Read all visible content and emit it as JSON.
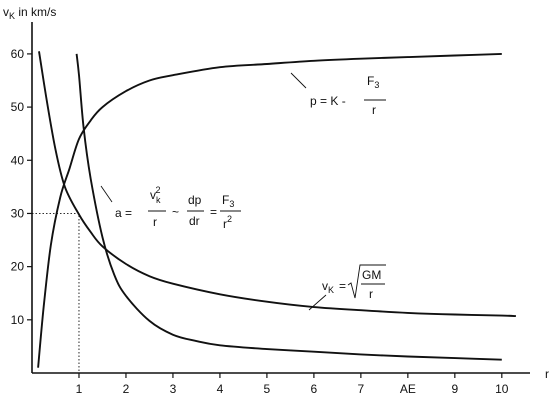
{
  "chart_data": {
    "type": "line",
    "ylabel": "v",
    "ylabel_sub": "K",
    "ylabel_suffix": " in km/s",
    "xlabel": "r",
    "xlim": [
      0,
      10.6
    ],
    "ylim": [
      0,
      66
    ],
    "x_ticks": [
      {
        "value": 1,
        "label": "1"
      },
      {
        "value": 2,
        "label": "2"
      },
      {
        "value": 3,
        "label": "3"
      },
      {
        "value": 4,
        "label": "4"
      },
      {
        "value": 5,
        "label": "5"
      },
      {
        "value": 6,
        "label": "6"
      },
      {
        "value": 7,
        "label": "7"
      },
      {
        "value": 8,
        "label": "AE"
      },
      {
        "value": 9,
        "label": "9"
      },
      {
        "value": 10,
        "label": "10"
      }
    ],
    "y_ticks": [
      {
        "value": 10,
        "label": "10"
      },
      {
        "value": 20,
        "label": "20"
      },
      {
        "value": 30,
        "label": "30"
      },
      {
        "value": 40,
        "label": "40"
      },
      {
        "value": 50,
        "label": "50"
      },
      {
        "value": 60,
        "label": "60"
      }
    ],
    "grid": false,
    "series": [
      {
        "x": [
          0.13,
          0.25,
          0.4,
          0.6,
          0.8,
          1.0,
          1.25,
          1.5,
          2.0,
          2.5,
          3.0,
          4.0,
          5.0,
          6.0,
          7.0,
          8.0,
          9.0,
          10.0
        ],
        "y": [
          1,
          12.5,
          24,
          33,
          38.5,
          44,
          47.5,
          50,
          53,
          55,
          56,
          57.5,
          58.1,
          58.7,
          59.1,
          59.4,
          59.7,
          60
        ]
      },
      {
        "x": [
          0.15,
          0.3,
          0.5,
          0.7,
          1.0,
          1.25,
          1.5,
          2.0,
          2.5,
          3.0,
          4.0,
          5.0,
          6.0,
          7.0,
          8.0,
          9.0,
          10.0,
          10.3
        ],
        "y": [
          60.5,
          52,
          42,
          35,
          29.8,
          26.5,
          23.8,
          20.5,
          18.2,
          16.8,
          14.8,
          13.4,
          12.4,
          11.8,
          11.3,
          11.0,
          10.8,
          10.7
        ]
      },
      {
        "x": [
          0.95,
          1.0,
          1.1,
          1.25,
          1.5,
          1.75,
          2.0,
          2.5,
          3.0,
          3.5,
          4.0,
          5.0,
          6.0,
          7.0,
          8.0,
          9.0,
          10.0
        ],
        "y": [
          60,
          56,
          46,
          36.5,
          25.5,
          18.5,
          14.5,
          9.8,
          7.2,
          6.0,
          5.2,
          4.5,
          4.0,
          3.5,
          3.1,
          2.8,
          2.5
        ]
      }
    ],
    "reference_point": {
      "x": 1,
      "y": 30
    },
    "annotations": [
      {
        "label": "p = K -",
        "numerator": "F",
        "numerator_sub": "3",
        "denominator": "r"
      },
      {
        "label": "a =",
        "parts": [
          "v",
          "k",
          "2",
          "r",
          "~",
          "dp",
          "dr",
          "=",
          "F",
          "3",
          "r",
          "2"
        ]
      },
      {
        "label": "v",
        "label_sub": "K",
        "eq": "=",
        "numerator": "GM",
        "denominator": "r"
      }
    ]
  }
}
